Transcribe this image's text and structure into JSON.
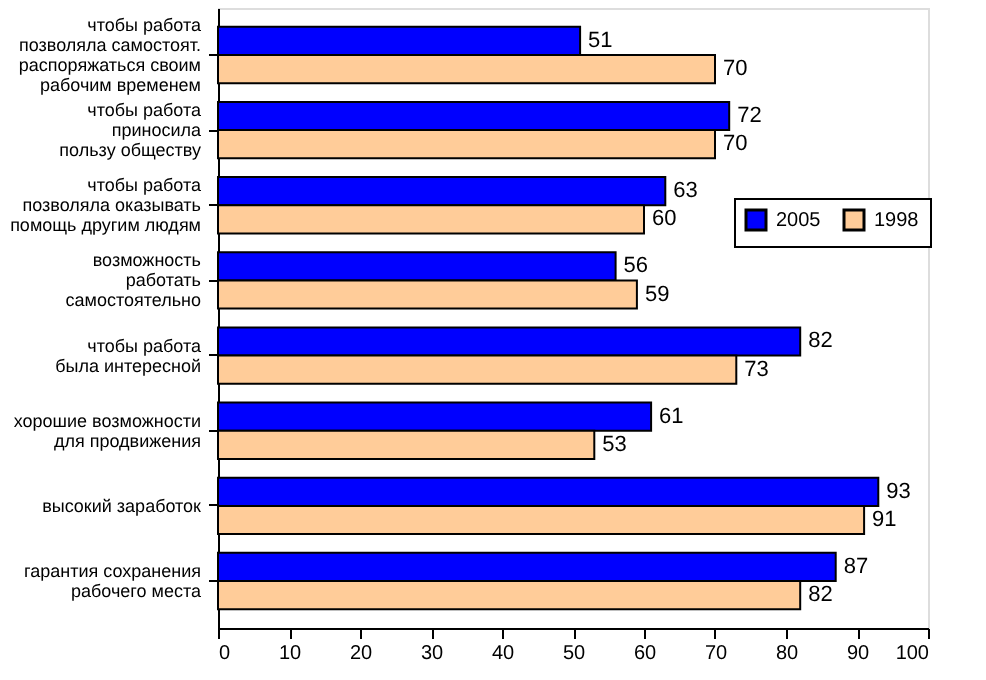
{
  "chart_data": {
    "type": "bar",
    "orientation": "horizontal",
    "categories": [
      "чтобы работа\nпозволяла самостоят.\nраспоряжаться своим\nрабочим временем",
      "чтобы работа\nприносила\nпользу обществу",
      "чтобы работа\nпозволяла оказывать\nпомощь другим людям",
      "возможность\nработать\nсамостоятельно",
      "чтобы работа\nбыла интересной",
      "хорошие возможности\nдля продвижения",
      "высокий заработок",
      "гарантия сохранения\nрабочего места"
    ],
    "series": [
      {
        "name": "2005",
        "color": "#0000ff",
        "values": [
          51,
          72,
          63,
          56,
          82,
          61,
          93,
          87
        ]
      },
      {
        "name": "1998",
        "color": "#ffcc99",
        "values": [
          70,
          70,
          60,
          59,
          73,
          53,
          91,
          82
        ]
      }
    ],
    "xlim": [
      0,
      100
    ],
    "xticks": [
      0,
      10,
      20,
      30,
      40,
      50,
      60,
      70,
      80,
      90,
      100
    ],
    "grid": false,
    "legend": "top right",
    "data_labels": true
  }
}
